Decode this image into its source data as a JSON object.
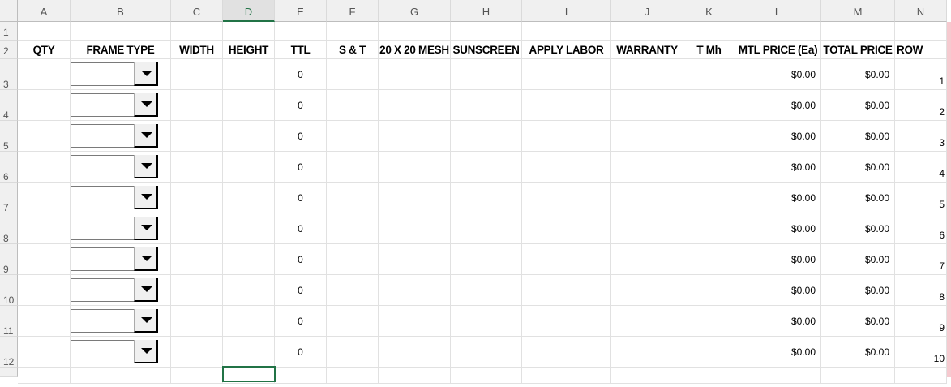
{
  "columns": [
    "A",
    "B",
    "C",
    "D",
    "E",
    "F",
    "G",
    "H",
    "I",
    "J",
    "K",
    "L",
    "M",
    "N"
  ],
  "selected_column": "D",
  "row_numbers": [
    "1",
    "2",
    "3",
    "4",
    "5",
    "6",
    "7",
    "8",
    "9",
    "10",
    "11",
    "12"
  ],
  "headers": [
    "QTY",
    "FRAME TYPE",
    "WIDTH",
    "HEIGHT",
    "TTL",
    "S & T",
    "20 X 20 MESH",
    "SUNSCREEN",
    "APPLY LABOR",
    "WARRANTY",
    "T Mh",
    "MTL PRICE (Ea)",
    "TOTAL PRICE",
    "ROW"
  ],
  "rows": [
    {
      "ttl": "0",
      "mtl_price": "$0.00",
      "total_price": "$0.00",
      "row": "1",
      "frame_type": ""
    },
    {
      "ttl": "0",
      "mtl_price": "$0.00",
      "total_price": "$0.00",
      "row": "2",
      "frame_type": ""
    },
    {
      "ttl": "0",
      "mtl_price": "$0.00",
      "total_price": "$0.00",
      "row": "3",
      "frame_type": ""
    },
    {
      "ttl": "0",
      "mtl_price": "$0.00",
      "total_price": "$0.00",
      "row": "4",
      "frame_type": ""
    },
    {
      "ttl": "0",
      "mtl_price": "$0.00",
      "total_price": "$0.00",
      "row": "5",
      "frame_type": ""
    },
    {
      "ttl": "0",
      "mtl_price": "$0.00",
      "total_price": "$0.00",
      "row": "6",
      "frame_type": ""
    },
    {
      "ttl": "0",
      "mtl_price": "$0.00",
      "total_price": "$0.00",
      "row": "7",
      "frame_type": ""
    },
    {
      "ttl": "0",
      "mtl_price": "$0.00",
      "total_price": "$0.00",
      "row": "8",
      "frame_type": ""
    },
    {
      "ttl": "0",
      "mtl_price": "$0.00",
      "total_price": "$0.00",
      "row": "9",
      "frame_type": ""
    },
    {
      "ttl": "0",
      "mtl_price": "$0.00",
      "total_price": "$0.00",
      "row": "10",
      "frame_type": ""
    }
  ],
  "colors": {
    "accent": "#217346",
    "grid": "#e1e1e1"
  }
}
